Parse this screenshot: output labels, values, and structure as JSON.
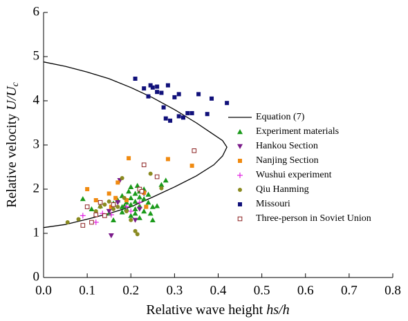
{
  "chart_data": {
    "type": "scatter",
    "xlabel": {
      "text": "Relative wave height ",
      "italic": "hs/h"
    },
    "ylabel": {
      "text": "Relative velocity ",
      "italic": "U/U",
      "sub": "c"
    },
    "xlim": [
      0,
      0.8
    ],
    "ylim": [
      0,
      6
    ],
    "xticks": [
      {
        "value": 0,
        "label": "0.0"
      },
      0.1,
      0.2,
      0.3,
      0.4,
      0.5,
      0.6,
      0.7,
      0.8
    ],
    "yticks": [
      0,
      1,
      2,
      3,
      4,
      5,
      6
    ],
    "curve": {
      "name": "Equation (7)",
      "color": "#000000",
      "x": [
        0,
        0.05,
        0.1,
        0.15,
        0.2,
        0.25,
        0.3,
        0.35,
        0.38,
        0.41,
        0.42,
        0.41,
        0.39,
        0.35,
        0.3,
        0.25,
        0.2,
        0.15,
        0.1,
        0.05,
        0
      ],
      "y": [
        4.88,
        4.78,
        4.65,
        4.5,
        4.3,
        4.07,
        3.8,
        3.5,
        3.3,
        3.1,
        2.95,
        2.75,
        2.55,
        2.3,
        2.05,
        1.82,
        1.6,
        1.45,
        1.32,
        1.2,
        1.13
      ]
    },
    "series": [
      {
        "name": "Experiment materials",
        "color": "#1a9a1a",
        "marker": "triangle-up",
        "x": [
          0.09,
          0.11,
          0.13,
          0.15,
          0.16,
          0.17,
          0.18,
          0.18,
          0.19,
          0.19,
          0.2,
          0.2,
          0.2,
          0.21,
          0.21,
          0.21,
          0.22,
          0.22,
          0.22,
          0.22,
          0.23,
          0.23,
          0.24,
          0.24,
          0.25,
          0.25,
          0.26,
          0.27,
          0.28,
          0.2,
          0.21,
          0.16,
          0.23,
          0.185,
          0.195,
          0.215,
          0.245,
          0.18
        ],
        "values": [
          1.78,
          1.55,
          1.62,
          1.45,
          1.68,
          1.75,
          1.6,
          1.85,
          1.7,
          1.55,
          1.8,
          1.65,
          1.4,
          1.9,
          1.72,
          1.55,
          1.95,
          1.82,
          1.62,
          1.35,
          1.78,
          1.5,
          1.7,
          1.88,
          1.6,
          1.3,
          1.62,
          2.1,
          2.2,
          2.05,
          1.45,
          1.3,
          2.0,
          1.62,
          1.95,
          2.08,
          1.45,
          1.48
        ]
      },
      {
        "name": "Hankou Section",
        "color": "#7a1a8a",
        "marker": "triangle-down",
        "x": [
          0.155,
          0.175,
          0.21,
          0.23,
          0.22,
          0.15,
          0.17
        ],
        "values": [
          0.95,
          2.2,
          1.3,
          1.9,
          1.55,
          1.5,
          1.7
        ]
      },
      {
        "name": "Nanjing Section",
        "color": "#f08a10",
        "marker": "square",
        "x": [
          0.1,
          0.15,
          0.155,
          0.165,
          0.17,
          0.19,
          0.195,
          0.23,
          0.235,
          0.285,
          0.34,
          0.12
        ],
        "values": [
          2.0,
          1.9,
          1.6,
          1.8,
          2.15,
          1.75,
          2.7,
          1.92,
          1.6,
          2.68,
          2.53,
          1.75
        ]
      },
      {
        "name": "Wushui  experiment",
        "color": "#e020e0",
        "marker": "plus",
        "x": [
          0.09,
          0.12,
          0.135,
          0.155,
          0.19,
          0.2,
          0.22
        ],
        "values": [
          1.4,
          1.25,
          1.45,
          1.42,
          1.6,
          1.5,
          1.7
        ]
      },
      {
        "name": "Qiu Hanming",
        "color": "#8a8a20",
        "marker": "circle",
        "x": [
          0.055,
          0.08,
          0.12,
          0.14,
          0.15,
          0.16,
          0.17,
          0.18,
          0.19,
          0.2,
          0.21,
          0.215,
          0.245,
          0.27,
          0.185,
          0.13
        ],
        "values": [
          1.25,
          1.32,
          1.5,
          1.65,
          1.72,
          1.55,
          1.6,
          2.25,
          1.5,
          1.3,
          1.05,
          0.98,
          2.35,
          2.02,
          1.8,
          1.6
        ]
      },
      {
        "name": "Missouri",
        "color": "#10107a",
        "marker": "square",
        "x": [
          0.21,
          0.23,
          0.245,
          0.25,
          0.26,
          0.27,
          0.285,
          0.26,
          0.275,
          0.28,
          0.29,
          0.3,
          0.31,
          0.31,
          0.32,
          0.33,
          0.34,
          0.355,
          0.375,
          0.385,
          0.42,
          0.24
        ],
        "values": [
          4.5,
          4.28,
          4.35,
          4.3,
          4.2,
          4.18,
          4.35,
          4.32,
          3.85,
          3.6,
          3.55,
          4.08,
          4.15,
          3.65,
          3.62,
          3.72,
          3.72,
          4.15,
          3.7,
          4.05,
          3.95,
          4.1
        ]
      },
      {
        "name": "Three-person in Soviet Union",
        "color": "#8a2020",
        "marker": "open-square",
        "x": [
          0.09,
          0.1,
          0.11,
          0.12,
          0.13,
          0.14,
          0.16,
          0.22,
          0.23,
          0.26,
          0.345,
          0.225
        ],
        "values": [
          1.18,
          1.6,
          1.25,
          1.42,
          1.7,
          1.4,
          1.65,
          2.0,
          2.55,
          2.28,
          2.87,
          1.95
        ]
      }
    ]
  }
}
